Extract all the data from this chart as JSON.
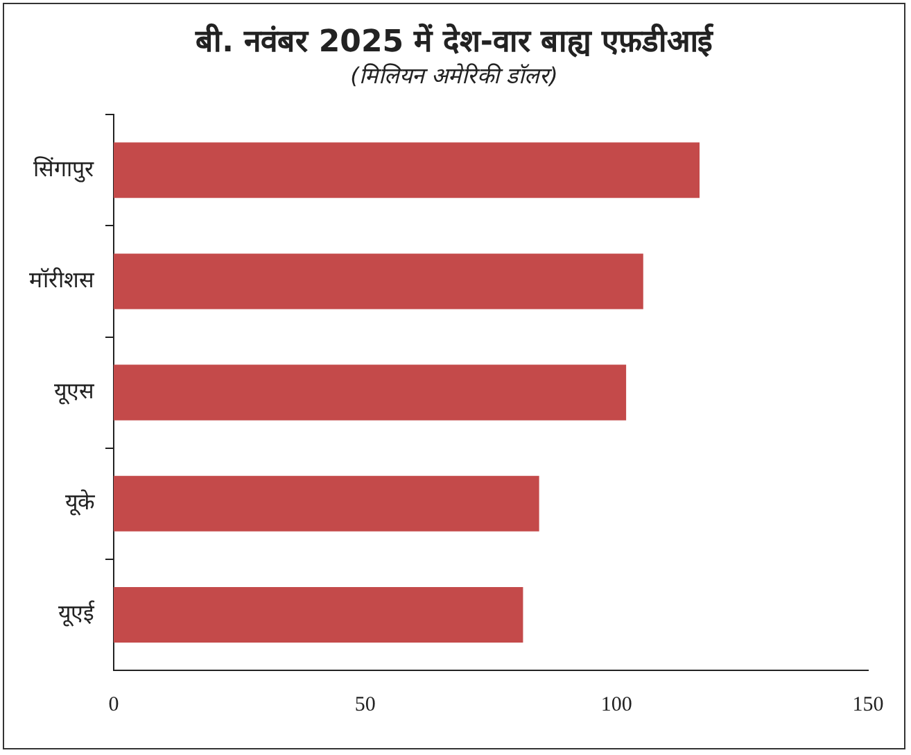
{
  "chart_data": {
    "type": "bar",
    "orientation": "horizontal",
    "title": "बी. नवंबर 2025 में देश-वार बाह्य एफ़डीआई",
    "subtitle": "(मिलियन अमेरिकी डॉलर)",
    "categories": [
      "सिंगापुर",
      "मॉरीशस",
      "यूएस",
      "यूके",
      "यूएई"
    ],
    "values": [
      116.5,
      105.3,
      101.9,
      84.6,
      81.4
    ],
    "color": "#c44a4a",
    "xlim": [
      0,
      150
    ],
    "xticks": [
      0,
      50,
      100,
      150
    ],
    "grid": false,
    "legend": false
  }
}
